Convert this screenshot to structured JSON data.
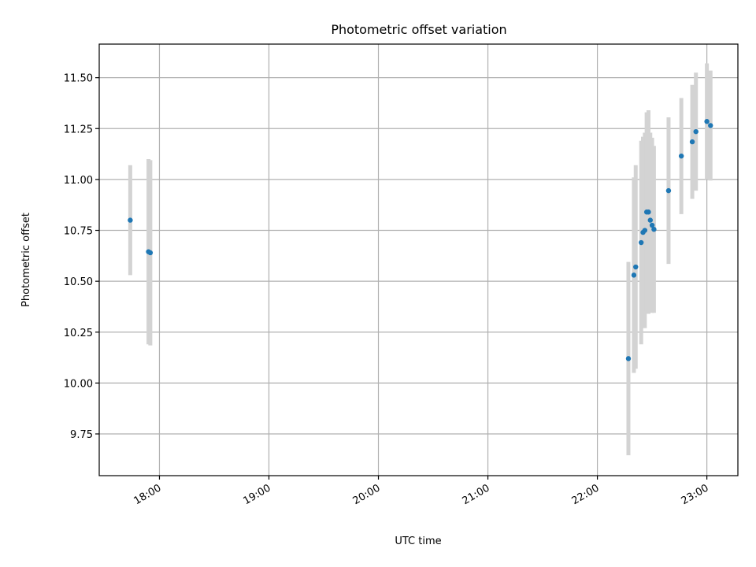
{
  "chart_data": {
    "type": "scatter",
    "title": "Photometric offset variation",
    "xlabel": "UTC time",
    "ylabel": "Photometric offset",
    "x_ticks": [
      "18:00",
      "19:00",
      "20:00",
      "21:00",
      "22:00",
      "23:00"
    ],
    "y_ticks": [
      "9.75",
      "10.00",
      "10.25",
      "10.50",
      "10.75",
      "11.00",
      "11.25",
      "11.50"
    ],
    "xlim": [
      "17:27",
      "23:17"
    ],
    "ylim": [
      9.545,
      11.665
    ],
    "grid": true,
    "colors": {
      "marker": "#1f77b4",
      "errorbar": "#d3d3d3"
    },
    "series": [
      {
        "points": [
          {
            "x": "17:44",
            "y": 10.8,
            "yerr": 0.27
          },
          {
            "x": "17:54",
            "y": 10.645,
            "yerr": 0.455
          },
          {
            "x": "17:55",
            "y": 10.64,
            "yerr": 0.455
          },
          {
            "x": "22:17",
            "y": 10.12,
            "yerr": 0.475
          },
          {
            "x": "22:20",
            "y": 10.53,
            "yerr": 0.48
          },
          {
            "x": "22:21",
            "y": 10.57,
            "yerr": 0.5
          },
          {
            "x": "22:24",
            "y": 10.69,
            "yerr": 0.5
          },
          {
            "x": "22:25",
            "y": 10.74,
            "yerr": 0.47
          },
          {
            "x": "22:26",
            "y": 10.75,
            "yerr": 0.48
          },
          {
            "x": "22:27",
            "y": 10.84,
            "yerr": 0.49
          },
          {
            "x": "22:28",
            "y": 10.84,
            "yerr": 0.5
          },
          {
            "x": "22:29",
            "y": 10.8,
            "yerr": 0.43
          },
          {
            "x": "22:30",
            "y": 10.775,
            "yerr": 0.43
          },
          {
            "x": "22:31",
            "y": 10.755,
            "yerr": 0.41
          },
          {
            "x": "22:39",
            "y": 10.945,
            "yerr": 0.36
          },
          {
            "x": "22:46",
            "y": 11.115,
            "yerr": 0.285
          },
          {
            "x": "22:52",
            "y": 11.185,
            "yerr": 0.28
          },
          {
            "x": "22:54",
            "y": 11.235,
            "yerr": 0.29
          },
          {
            "x": "23:00",
            "y": 11.285,
            "yerr": 0.285
          },
          {
            "x": "23:02",
            "y": 11.265,
            "yerr": 0.27
          }
        ]
      }
    ]
  }
}
